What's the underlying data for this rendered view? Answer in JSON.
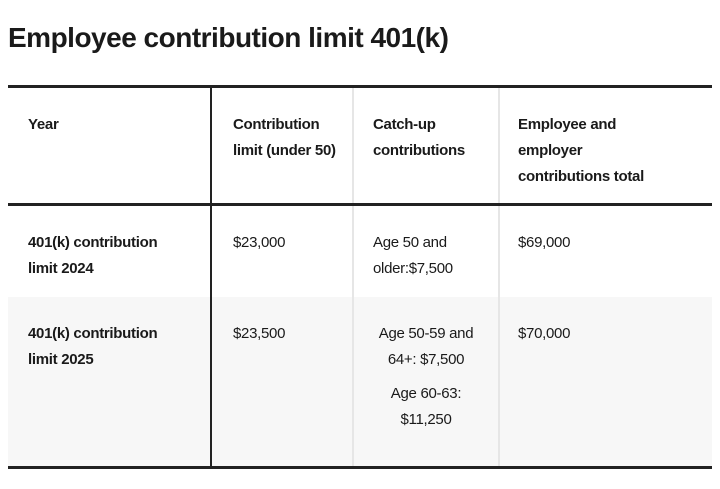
{
  "title": "Employee contribution limit 401(k)",
  "table": {
    "headers": [
      "Year",
      "Contribution limit (under 50)",
      "Catch-up contributions",
      "Employee and employer contributions total"
    ],
    "rows": [
      {
        "year": "401(k) contribution limit 2024",
        "limit": "$23,000",
        "catch_up": [
          "Age 50 and older:$7,500"
        ],
        "total": "$69,000"
      },
      {
        "year": "401(k) contribution limit 2025",
        "limit": "$23,500",
        "catch_up": [
          "Age 50-59 and 64+: $7,500",
          "Age 60-63: $11,250"
        ],
        "total": "$70,000"
      }
    ]
  },
  "colors": {
    "rule": "#222222",
    "alt_row_bg": "#f7f7f7",
    "divider": "#e6e6e6"
  }
}
